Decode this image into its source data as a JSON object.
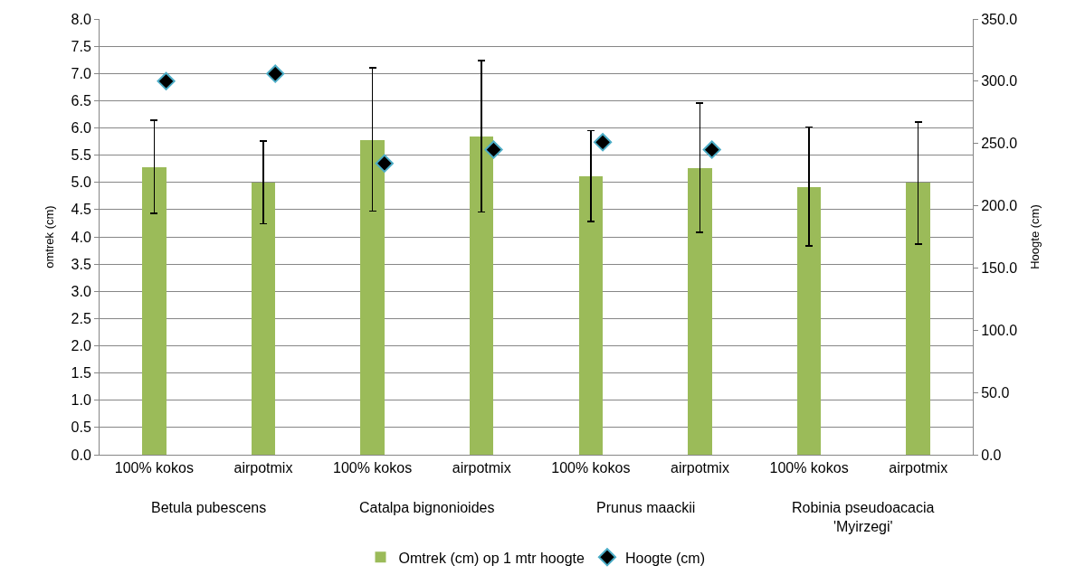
{
  "chart_data": {
    "type": "bar",
    "ylabel": "omtrek (cm)",
    "y2label": "Hoogte (cm)",
    "categories": [
      "100% kokos",
      "airpotmix",
      "100% kokos",
      "airpotmix",
      "100% kokos",
      "airpotmix",
      "100% kokos",
      "airpotmix"
    ],
    "annotations": [
      "Betula pubescens",
      "Catalpa bignonioides",
      "Prunus maackii",
      "Robinia pseudoacacia\n'Myirzegi'"
    ],
    "series": [
      {
        "name": "Omtrek (cm) op 1 mtr hoogte",
        "color": "#9bbb59",
        "values": [
          5.28,
          5.0,
          5.78,
          5.84,
          5.11,
          5.26,
          4.92,
          4.99
        ],
        "errors": [
          [
            4.43,
            6.14
          ],
          [
            4.24,
            5.76
          ],
          [
            4.47,
            7.1
          ],
          [
            4.46,
            7.24
          ],
          [
            4.28,
            5.95
          ],
          [
            4.08,
            6.46
          ],
          [
            3.83,
            6.02
          ],
          [
            3.87,
            6.11
          ]
        ]
      },
      {
        "name": "Hoogte (cm)",
        "type": "scatter",
        "axis": "y2",
        "marker": "diamond",
        "color": "#000000",
        "values": [
          300,
          306,
          234,
          245,
          251,
          245,
          null,
          null
        ]
      }
    ],
    "ylim": [
      0,
      8
    ],
    "yticks": [
      {
        "value": 0,
        "label": "0.0"
      },
      {
        "value": 0.5,
        "label": "0.5"
      },
      {
        "value": 1,
        "label": "1.0"
      },
      {
        "value": 1.5,
        "label": "1.5"
      },
      {
        "value": 2,
        "label": "2.0"
      },
      {
        "value": 2.5,
        "label": "2.5"
      },
      {
        "value": 3,
        "label": "3.0"
      },
      {
        "value": 3.5,
        "label": "3.5"
      },
      {
        "value": 4,
        "label": "4.0"
      },
      {
        "value": 4.5,
        "label": "4.5"
      },
      {
        "value": 5,
        "label": "5.0"
      },
      {
        "value": 5.5,
        "label": "5.5"
      },
      {
        "value": 6,
        "label": "6.0"
      },
      {
        "value": 6.5,
        "label": "6.5"
      },
      {
        "value": 7,
        "label": "7.0"
      },
      {
        "value": 7.5,
        "label": "7.5"
      },
      {
        "value": 8,
        "label": "8.0"
      }
    ],
    "y2lim": [
      0,
      350
    ],
    "y2ticks": [
      {
        "value": 0,
        "label": "0.0"
      },
      {
        "value": 50,
        "label": "50.0"
      },
      {
        "value": 100,
        "label": "100.0"
      },
      {
        "value": 150,
        "label": "150.0"
      },
      {
        "value": 200,
        "label": "200.0"
      },
      {
        "value": 250,
        "label": "250.0"
      },
      {
        "value": 300,
        "label": "300.0"
      },
      {
        "value": 350,
        "label": "350.0"
      }
    ],
    "grid": "y",
    "legend": "bottom"
  }
}
